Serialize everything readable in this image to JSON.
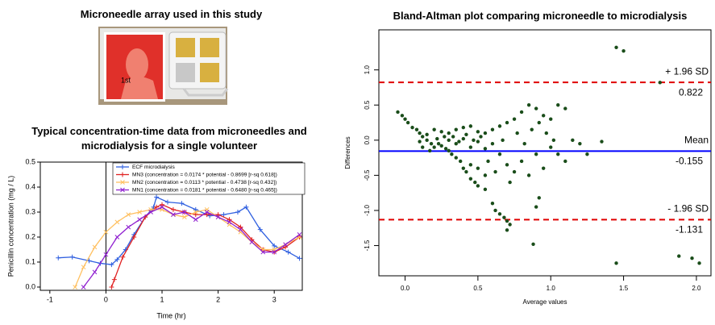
{
  "photo": {
    "title": "Microneedle array used in this study",
    "stamp_label": "1st"
  },
  "chart_data": [
    {
      "type": "line",
      "title": "Typical concentration-time data from microneedles and microdialysis for a single volunteer",
      "xlabel": "Time (hr)",
      "ylabel": "Penicillin concentration (mg / L)",
      "xlim": [
        -1.17,
        3.5
      ],
      "ylim": [
        -0.013,
        0.5
      ],
      "xticks": [
        -1,
        0,
        1,
        2,
        3
      ],
      "yticks": [
        {
          "value": 0,
          "label": "0.0"
        },
        0.1,
        0.2,
        0.3,
        0.4,
        0.5
      ],
      "vline": 0,
      "series": [
        {
          "name": "ECF microdialysis",
          "color": "#3060e0",
          "marker": "plus",
          "x": [
            -0.85,
            -0.6,
            -0.3,
            -0.1,
            0.1,
            0.2,
            0.35,
            0.5,
            0.7,
            0.85,
            0.9,
            1.1,
            1.35,
            1.6,
            1.85,
            2.1,
            2.35,
            2.5,
            2.75,
            3.0,
            3.25,
            3.45
          ],
          "values": [
            0.117,
            0.12,
            0.105,
            0.095,
            0.09,
            0.11,
            0.15,
            0.21,
            0.28,
            0.32,
            0.36,
            0.34,
            0.335,
            0.31,
            0.285,
            0.29,
            0.3,
            0.32,
            0.23,
            0.165,
            0.14,
            0.115
          ]
        },
        {
          "name": "MN3 (concentration = 0.0174 * potential - 0.8699 [r-sq 0.618])",
          "color": "#e02020",
          "marker": "plus",
          "x": [
            0.1,
            0.15,
            0.3,
            0.5,
            0.7,
            0.9,
            1.0,
            1.2,
            1.4,
            1.6,
            1.8,
            2.0,
            2.2,
            2.4,
            2.6,
            2.8,
            3.0,
            3.2,
            3.45
          ],
          "values": [
            0.0,
            0.03,
            0.12,
            0.2,
            0.28,
            0.32,
            0.33,
            0.31,
            0.3,
            0.29,
            0.29,
            0.29,
            0.27,
            0.24,
            0.19,
            0.15,
            0.14,
            0.16,
            0.2
          ]
        },
        {
          "name": "MN2 (concentration = 0.0113 * potential - 0.4738 [r-sq 0.432])",
          "color": "#ffc060",
          "marker": "cross",
          "x": [
            -0.55,
            -0.4,
            -0.2,
            0,
            0.2,
            0.4,
            0.6,
            0.8,
            1.0,
            1.2,
            1.4,
            1.6,
            1.8,
            2.0,
            2.2,
            2.4,
            2.6,
            2.8,
            3.0,
            3.2,
            3.45
          ],
          "values": [
            0.0,
            0.08,
            0.16,
            0.22,
            0.26,
            0.29,
            0.3,
            0.31,
            0.31,
            0.29,
            0.28,
            0.3,
            0.31,
            0.28,
            0.25,
            0.22,
            0.18,
            0.15,
            0.15,
            0.17,
            0.2
          ]
        },
        {
          "name": "MN1 (concentration = 0.0181 * potential - 0.6480 [r-sq 0.465])",
          "color": "#9020d0",
          "marker": "cross",
          "x": [
            -0.4,
            -0.2,
            0.0,
            0.2,
            0.4,
            0.6,
            0.8,
            1.0,
            1.2,
            1.4,
            1.6,
            1.8,
            2.0,
            2.2,
            2.4,
            2.6,
            2.8,
            3.0,
            3.2,
            3.45
          ],
          "values": [
            0.0,
            0.06,
            0.13,
            0.2,
            0.24,
            0.27,
            0.3,
            0.32,
            0.29,
            0.3,
            0.27,
            0.3,
            0.28,
            0.26,
            0.23,
            0.18,
            0.14,
            0.14,
            0.17,
            0.21
          ]
        }
      ]
    },
    {
      "type": "scatter",
      "title": "Bland-Altman plot comparing microneedle to microdialysis",
      "xlabel": "Average values",
      "ylabel": "Differences",
      "xlim": [
        -0.18,
        2.1
      ],
      "ylim": [
        -1.93,
        1.57
      ],
      "xticks": [
        {
          "value": 0,
          "label": "0.0"
        },
        0.5,
        {
          "value": 1,
          "label": "1.0"
        },
        1.5,
        {
          "value": 2,
          "label": "2.0"
        }
      ],
      "yticks": [
        -1.5,
        {
          "value": -1,
          "label": "-1.0"
        },
        -0.5,
        {
          "value": 0,
          "label": "0.0"
        },
        0.5,
        {
          "value": 1,
          "label": "1.0"
        }
      ],
      "color": "#1a4d1a",
      "x": [
        -0.05,
        -0.02,
        0.0,
        0.02,
        0.05,
        0.08,
        0.1,
        0.12,
        0.15,
        0.18,
        0.2,
        0.22,
        0.25,
        0.27,
        0.3,
        0.32,
        0.35,
        0.38,
        0.4,
        0.42,
        0.45,
        0.48,
        0.5,
        0.55,
        0.6,
        0.62,
        0.65,
        0.68,
        0.7,
        0.72,
        0.7,
        0.2,
        0.25,
        0.3,
        0.35,
        0.4,
        0.45,
        0.5,
        0.55,
        0.6,
        0.65,
        0.7,
        0.75,
        0.8,
        0.85,
        0.9,
        0.95,
        1.0,
        1.05,
        1.1,
        0.3,
        0.35,
        0.4,
        0.45,
        0.5,
        0.55,
        0.6,
        0.65,
        0.7,
        0.75,
        0.8,
        0.85,
        0.9,
        0.95,
        1.0,
        1.05,
        1.1,
        1.15,
        1.2,
        1.25,
        1.35,
        1.45,
        1.5,
        1.75,
        1.45,
        1.88,
        1.97,
        2.02,
        0.88,
        0.92,
        0.9,
        0.1,
        0.12,
        0.15,
        0.17,
        0.23,
        0.28,
        0.33,
        0.37,
        0.42,
        0.47,
        0.52,
        0.57,
        0.62,
        0.67,
        0.72,
        0.77,
        0.82,
        0.87,
        0.92,
        0.97,
        1.02,
        0.45,
        0.5,
        0.55
      ],
      "values": [
        0.4,
        0.35,
        0.3,
        0.25,
        0.18,
        0.15,
        0.1,
        0.05,
        0.0,
        -0.05,
        -0.1,
        0.02,
        -0.08,
        0.05,
        -0.15,
        -0.2,
        -0.25,
        -0.3,
        -0.4,
        -0.45,
        -0.55,
        -0.6,
        -0.65,
        -0.7,
        -0.9,
        -1.0,
        -1.05,
        -1.1,
        -1.15,
        -1.2,
        -1.28,
        0.15,
        0.12,
        0.1,
        0.15,
        0.18,
        0.2,
        0.12,
        0.1,
        0.15,
        0.2,
        0.25,
        0.3,
        0.4,
        0.5,
        0.45,
        0.35,
        0.3,
        0.5,
        0.45,
        0.0,
        -0.05,
        0.02,
        -0.1,
        -0.02,
        -0.12,
        -0.05,
        -0.2,
        -0.35,
        -0.45,
        -0.3,
        -0.5,
        -0.2,
        -0.4,
        -0.1,
        -0.2,
        -0.3,
        0.0,
        -0.05,
        -0.2,
        -0.02,
        1.32,
        1.27,
        0.82,
        -1.75,
        -1.65,
        -1.68,
        -1.75,
        -1.48,
        -0.82,
        -0.95,
        -0.02,
        -0.1,
        0.08,
        -0.15,
        -0.05,
        -0.12,
        0.05,
        -0.02,
        0.08,
        0.0,
        0.05,
        -0.3,
        -0.45,
        0.0,
        -0.6,
        0.1,
        -0.05,
        0.15,
        0.25,
        0.1,
        0.0,
        -0.35,
        -0.4,
        -0.5
      ],
      "reference_lines": [
        {
          "label": "+ 1.96 SD",
          "value": 0.822,
          "color": "#e00000",
          "style": "dashed"
        },
        {
          "label": "Mean",
          "value": -0.155,
          "color": "#0000ff",
          "style": "solid"
        },
        {
          "label": "- 1.96 SD",
          "value": -1.131,
          "color": "#e00000",
          "style": "dashed"
        }
      ]
    }
  ]
}
